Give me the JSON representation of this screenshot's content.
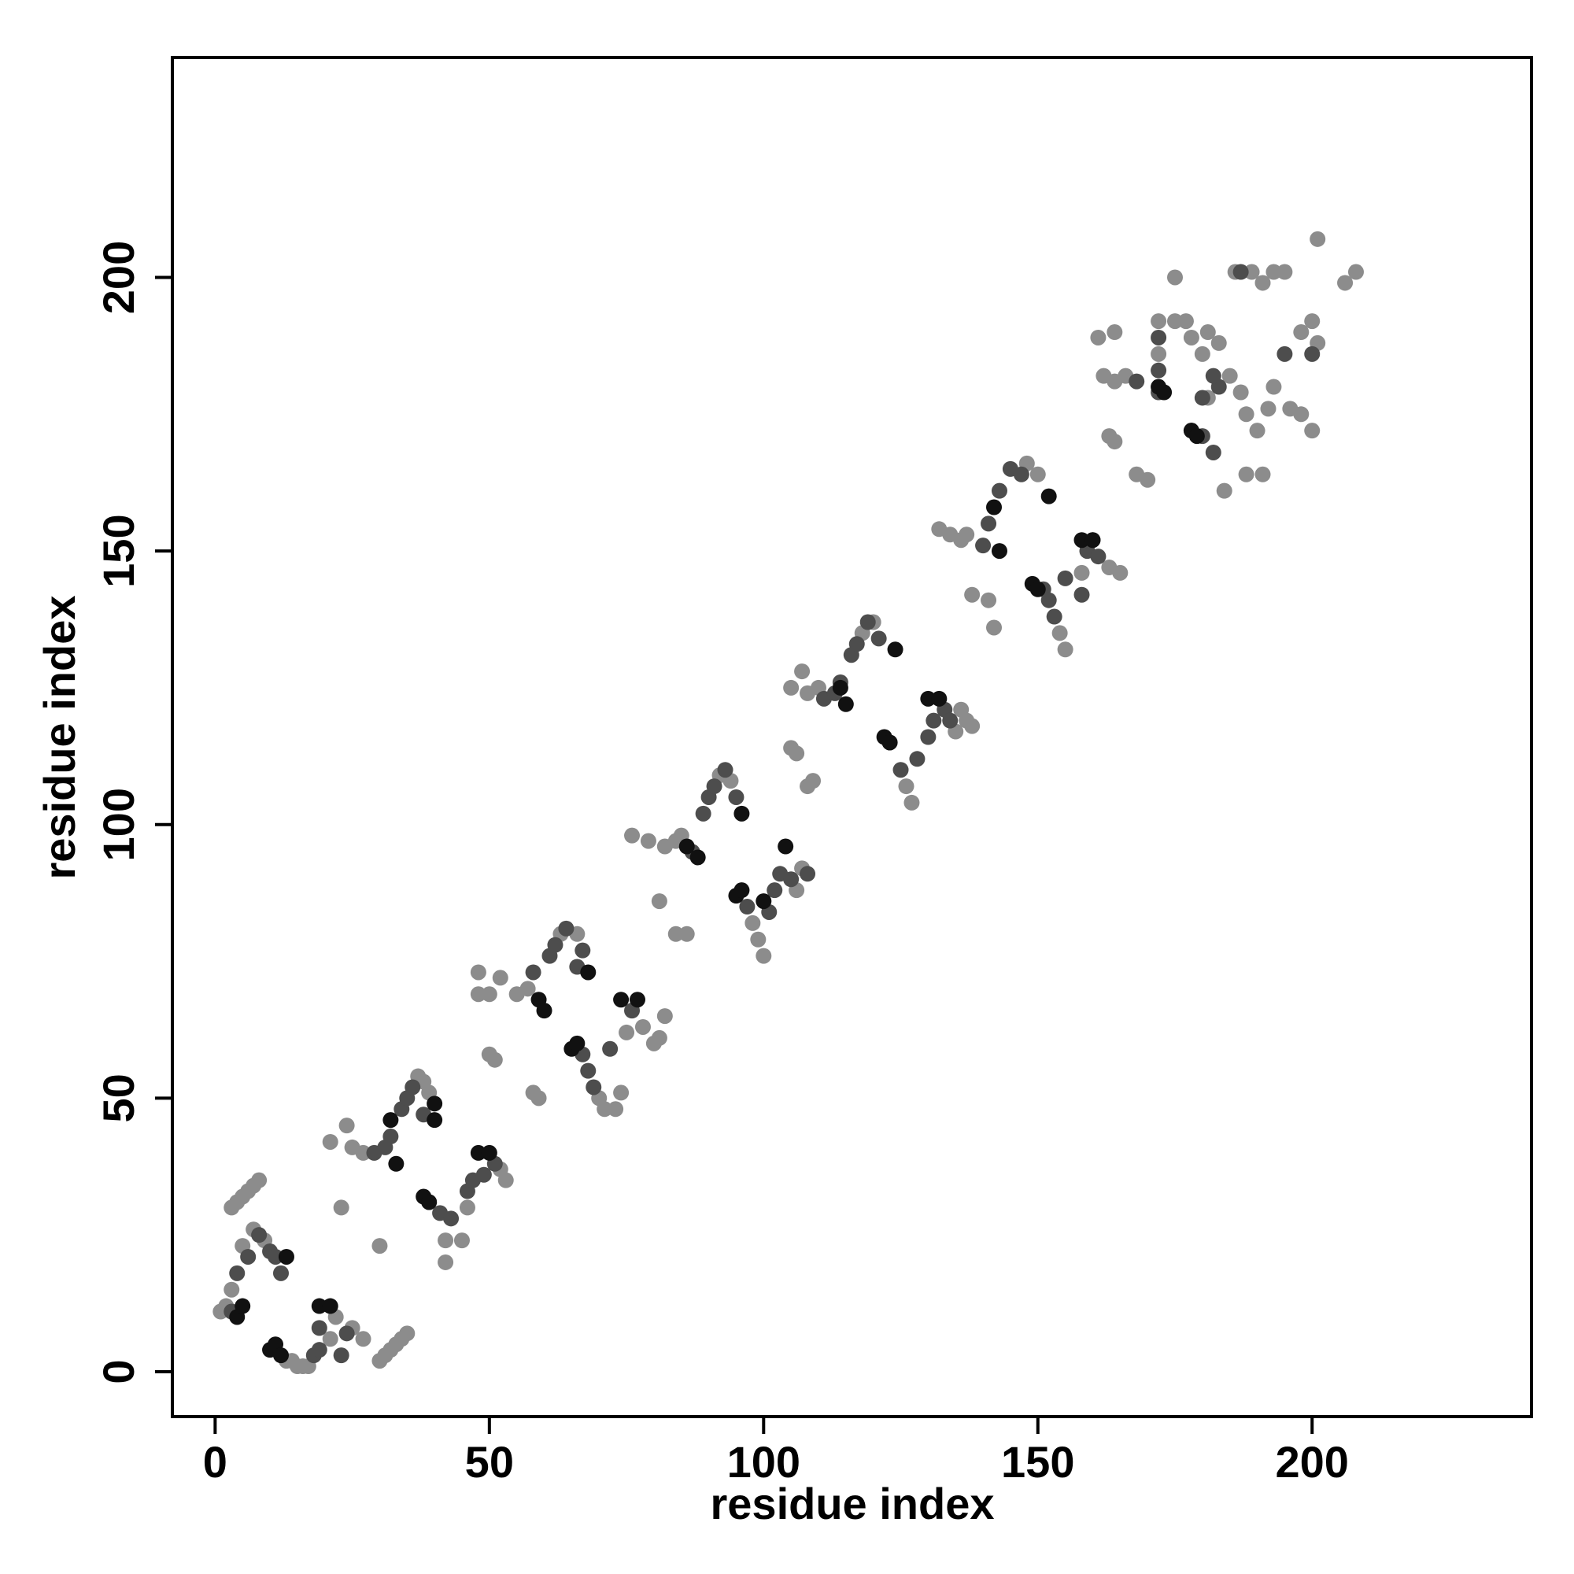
{
  "chart_data": {
    "type": "scatter",
    "x_label": "residue index",
    "y_label": "residue index",
    "xlim": [
      -7.8,
      240
    ],
    "ylim": [
      -8.2,
      240.2
    ],
    "xticks": [
      0,
      50,
      100,
      150,
      200
    ],
    "yticks": [
      0,
      50,
      100,
      150,
      200
    ],
    "series": [
      {
        "color": "#8c8c8c",
        "x": [
          1,
          2,
          3,
          5,
          7,
          9,
          3,
          4,
          5,
          6,
          7,
          8,
          13,
          14,
          15,
          16,
          17,
          21,
          22,
          25,
          27,
          30,
          31,
          32,
          33,
          34,
          35,
          21,
          24,
          25,
          27,
          23,
          30,
          37,
          38,
          39,
          42,
          42,
          45,
          46,
          52,
          53,
          48,
          48,
          50,
          52,
          55,
          57,
          50,
          51,
          58,
          59,
          63,
          66,
          70,
          71,
          73,
          74,
          75,
          78,
          80,
          82,
          81,
          76,
          79,
          82,
          84,
          85,
          84,
          81,
          86,
          92,
          94,
          98,
          99,
          100,
          106,
          107,
          105,
          107,
          108,
          110,
          105,
          106,
          108,
          109,
          118,
          120,
          126,
          127,
          135,
          136,
          137,
          138,
          132,
          134,
          136,
          137,
          138,
          141,
          142,
          148,
          150,
          154,
          155,
          158,
          163,
          165,
          162,
          164,
          166,
          161,
          164,
          163,
          164,
          168,
          170,
          172,
          172,
          175,
          175,
          177,
          178,
          180,
          181,
          183,
          184,
          181,
          185,
          187,
          188,
          190,
          192,
          193,
          196,
          198,
          200,
          186,
          189,
          191,
          193,
          195,
          198,
          200,
          201,
          201,
          206,
          208,
          188,
          191
        ],
        "values": [
          11,
          12,
          15,
          23,
          26,
          24,
          30,
          31,
          32,
          33,
          34,
          35,
          2,
          2,
          1,
          1,
          1,
          6,
          10,
          8,
          6,
          2,
          3,
          4,
          5,
          6,
          7,
          42,
          45,
          41,
          40,
          30,
          23,
          54,
          53,
          51,
          24,
          20,
          24,
          30,
          37,
          35,
          73,
          69,
          69,
          72,
          69,
          70,
          58,
          57,
          51,
          50,
          80,
          80,
          50,
          48,
          48,
          51,
          62,
          63,
          60,
          65,
          61,
          98,
          97,
          96,
          97,
          98,
          80,
          86,
          80,
          109,
          108,
          82,
          79,
          76,
          88,
          92,
          125,
          128,
          124,
          125,
          114,
          113,
          107,
          108,
          135,
          137,
          107,
          104,
          117,
          121,
          119,
          118,
          154,
          153,
          152,
          153,
          142,
          141,
          136,
          166,
          164,
          135,
          132,
          146,
          147,
          146,
          182,
          181,
          182,
          189,
          190,
          171,
          170,
          164,
          163,
          186,
          192,
          200,
          192,
          192,
          189,
          186,
          190,
          188,
          161,
          178,
          182,
          179,
          175,
          172,
          176,
          180,
          176,
          175,
          172,
          201,
          201,
          199,
          201,
          201,
          190,
          192,
          188,
          207,
          199,
          201,
          164,
          164
        ]
      },
      {
        "color": "#4d4d4d",
        "x": [
          3,
          4,
          6,
          8,
          10,
          11,
          12,
          18,
          19,
          19,
          23,
          24,
          29,
          31,
          32,
          34,
          35,
          36,
          38,
          39,
          41,
          43,
          46,
          47,
          49,
          51,
          58,
          61,
          62,
          64,
          67,
          66,
          67,
          68,
          69,
          72,
          76,
          87,
          89,
          90,
          91,
          93,
          95,
          97,
          101,
          102,
          103,
          105,
          108,
          111,
          113,
          114,
          116,
          117,
          119,
          121,
          123,
          125,
          128,
          130,
          131,
          133,
          134,
          140,
          141,
          143,
          145,
          147,
          151,
          152,
          153,
          155,
          158,
          159,
          160,
          161,
          168,
          172,
          172,
          172,
          178,
          180,
          182,
          183,
          180,
          182,
          187,
          195,
          200
        ],
        "values": [
          11,
          18,
          21,
          25,
          22,
          21,
          18,
          3,
          4,
          8,
          3,
          7,
          40,
          41,
          43,
          48,
          50,
          52,
          47,
          31,
          29,
          28,
          33,
          35,
          36,
          38,
          73,
          76,
          78,
          81,
          77,
          74,
          58,
          55,
          52,
          59,
          66,
          95,
          102,
          105,
          107,
          110,
          105,
          85,
          84,
          88,
          91,
          90,
          91,
          123,
          124,
          126,
          131,
          133,
          137,
          134,
          115,
          110,
          112,
          116,
          119,
          121,
          119,
          151,
          155,
          161,
          165,
          164,
          143,
          141,
          138,
          145,
          142,
          150,
          152,
          149,
          181,
          179,
          183,
          189,
          172,
          171,
          168,
          180,
          178,
          182,
          201,
          186,
          186
        ]
      },
      {
        "color": "#111111",
        "x": [
          4,
          5,
          13,
          10,
          11,
          12,
          19,
          21,
          33,
          32,
          40,
          38,
          39,
          40,
          48,
          50,
          59,
          60,
          68,
          65,
          66,
          74,
          77,
          86,
          88,
          96,
          95,
          96,
          100,
          104,
          114,
          115,
          124,
          122,
          123,
          130,
          132,
          142,
          143,
          152,
          149,
          150,
          158,
          160,
          172,
          173,
          178,
          179
        ],
        "values": [
          10,
          12,
          21,
          4,
          5,
          3,
          12,
          12,
          38,
          46,
          49,
          32,
          31,
          46,
          40,
          40,
          68,
          66,
          73,
          59,
          60,
          68,
          68,
          96,
          94,
          102,
          87,
          88,
          86,
          96,
          125,
          122,
          132,
          116,
          115,
          123,
          123,
          158,
          150,
          160,
          144,
          143,
          152,
          152,
          180,
          179,
          172,
          171
        ]
      }
    ]
  }
}
